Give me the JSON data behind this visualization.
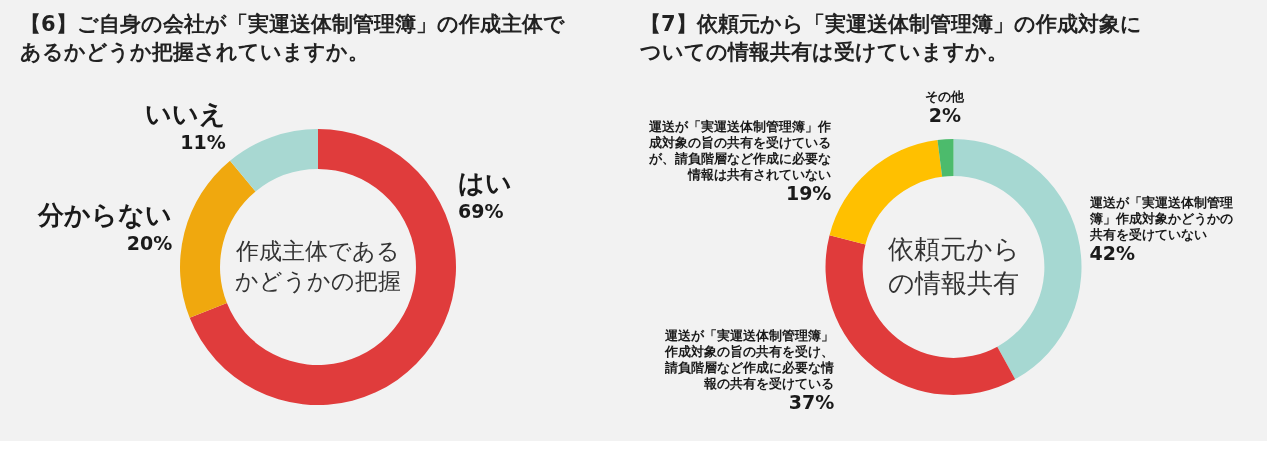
{
  "chart_data": [
    {
      "type": "donut",
      "title": "【6】ご自身の会社が「実運送体制管理簿」の作成主体であるかどうか把握されていますか。",
      "categories": [
        "はい",
        "分からない",
        "いいえ"
      ],
      "values": [
        69,
        20,
        11
      ],
      "colors": [
        "#e03c3c",
        "#f0a80e",
        "#a8d8d2"
      ],
      "value_labels": [
        "69%",
        "20%",
        "11%"
      ],
      "annotations": [
        "作成主体であるかどうかの把握"
      ]
    },
    {
      "type": "donut",
      "title": "【7】依頼元から「実運送体制管理簿」の作成対象についての情報共有は受けていますか。",
      "categories": [
        "運送が「実運送体制管理簿」作成対象かどうかの共有を受けていない",
        "運送が「実運送体制管理簿」作成対象の旨の共有を受け、請負階層など作成に必要な情報の共有を受けている",
        "運送が「実運送体制管理簿」作成対象の旨の共有を受けているが、請負階層など作成に必要な情報は共有されていない",
        "その他"
      ],
      "values": [
        42,
        37,
        19,
        2
      ],
      "colors": [
        "#a6d8d2",
        "#e03b3b",
        "#ffc000",
        "#4cbb6c"
      ],
      "value_labels": [
        "42%",
        "37%",
        "19%",
        "2%"
      ],
      "annotations": [
        "依頼元からの情報共有"
      ]
    }
  ]
}
